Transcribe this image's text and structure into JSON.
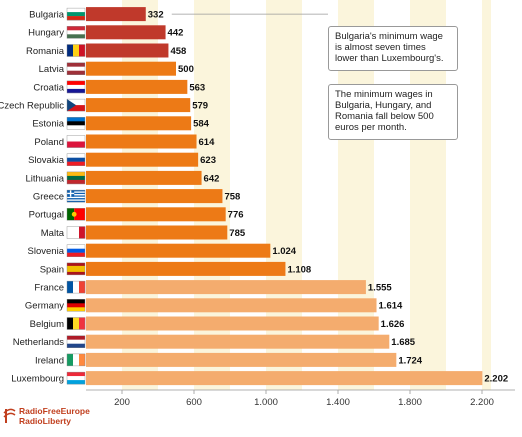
{
  "chart_data": {
    "type": "bar",
    "orientation": "horizontal",
    "categories": [
      "Bulgaria",
      "Hungary",
      "Romania",
      "Latvia",
      "Croatia",
      "Czech Republic",
      "Estonia",
      "Poland",
      "Slovakia",
      "Lithuania",
      "Greece",
      "Portugal",
      "Malta",
      "Slovenia",
      "Spain",
      "France",
      "Germany",
      "Belgium",
      "Netherlands",
      "Ireland",
      "Luxembourg"
    ],
    "values": [
      332,
      442,
      458,
      500,
      563,
      579,
      584,
      614,
      623,
      642,
      758,
      776,
      785,
      1024,
      1108,
      1555,
      1614,
      1626,
      1685,
      1724,
      2202
    ],
    "value_labels": [
      "332",
      "442",
      "458",
      "500",
      "563",
      "579",
      "584",
      "614",
      "623",
      "642",
      "758",
      "776",
      "785",
      "1.024",
      "1.108",
      "1.555",
      "1.614",
      "1.626",
      "1.685",
      "1.724",
      "2.202"
    ],
    "bar_colors": [
      "#c0392b",
      "#c0392b",
      "#c0392b",
      "#ed7a16",
      "#ed7a16",
      "#ed7a16",
      "#ed7a16",
      "#ed7a16",
      "#ed7a16",
      "#ed7a16",
      "#ed7a16",
      "#ed7a16",
      "#ed7a16",
      "#ed7a16",
      "#ed7a16",
      "#f4ac6e",
      "#f4ac6e",
      "#f4ac6e",
      "#f4ac6e",
      "#f4ac6e",
      "#f4ac6e"
    ],
    "xlim": [
      0,
      2250
    ],
    "x_ticks": [
      200,
      600,
      1000,
      1400,
      1800,
      2200
    ],
    "x_tick_labels": [
      "200",
      "600",
      "1.000",
      "1.400",
      "1.800",
      "2.200"
    ],
    "background_band_color": "#fbf5dc",
    "annotations": [
      "Bulgaria's minimum wage is almost seven times lower than Luxembourg's.",
      "The minimum wages in Bulgaria, Hungary, and Romania fall below 500 euros per month."
    ],
    "title": "",
    "xlabel": "",
    "ylabel": ""
  },
  "logo": {
    "text": "RadioFreeEurope\nRadioLiberty"
  }
}
